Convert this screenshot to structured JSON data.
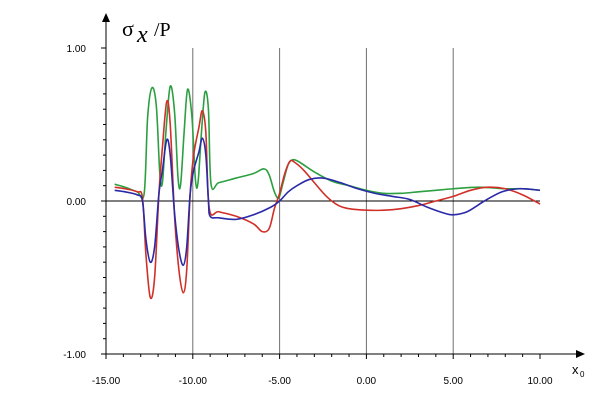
{
  "chart_data": {
    "type": "line",
    "ylabel": {
      "sigma": "σ",
      "sub": "x",
      "rest": "/P"
    },
    "xlabel": {
      "main": "x",
      "sub": "0"
    },
    "xlim": [
      -15,
      10
    ],
    "ylim": [
      -1,
      1
    ],
    "x_ticks": [
      -15,
      -10,
      -5,
      0,
      5,
      10
    ],
    "x_tick_labels": [
      "-15.00",
      "-10.00",
      "-5.00",
      "0.00",
      "5.00",
      "10.00"
    ],
    "y_ticks": [
      -1,
      0,
      1
    ],
    "y_tick_labels": [
      "-1.00",
      "0.00",
      "1.00"
    ],
    "vertical_gridlines_at": [
      -10,
      -5,
      0,
      5
    ],
    "series": [
      {
        "color": "#2ca040",
        "points": [
          [
            -14.5,
            0.11
          ],
          [
            -13.9,
            0.09
          ],
          [
            -13.2,
            0.06
          ],
          [
            -12.8,
            0.05
          ],
          [
            -12.6,
            0.55
          ],
          [
            -12.35,
            0.74
          ],
          [
            -12.1,
            0.62
          ],
          [
            -11.9,
            0.18
          ],
          [
            -11.75,
            0.12
          ],
          [
            -11.55,
            0.45
          ],
          [
            -11.3,
            0.75
          ],
          [
            -11.05,
            0.58
          ],
          [
            -10.85,
            0.15
          ],
          [
            -10.7,
            0.11
          ],
          [
            -10.5,
            0.45
          ],
          [
            -10.3,
            0.73
          ],
          [
            -10.05,
            0.55
          ],
          [
            -9.85,
            0.14
          ],
          [
            -9.7,
            0.12
          ],
          [
            -9.5,
            0.45
          ],
          [
            -9.3,
            0.71
          ],
          [
            -9.1,
            0.6
          ],
          [
            -8.95,
            0.11
          ],
          [
            -8.5,
            0.12
          ],
          [
            -7.5,
            0.15
          ],
          [
            -6.5,
            0.18
          ],
          [
            -5.9,
            0.21
          ],
          [
            -5.6,
            0.17
          ],
          [
            -5.3,
            0.06
          ],
          [
            -5.05,
            0.02
          ],
          [
            -4.8,
            0.12
          ],
          [
            -4.5,
            0.24
          ],
          [
            -4.2,
            0.27
          ],
          [
            -3.8,
            0.25
          ],
          [
            -3.0,
            0.19
          ],
          [
            -2.0,
            0.13
          ],
          [
            -1.0,
            0.1
          ],
          [
            0.0,
            0.07
          ],
          [
            1.0,
            0.05
          ],
          [
            2.0,
            0.05
          ],
          [
            3.0,
            0.06
          ],
          [
            4.0,
            0.07
          ],
          [
            5.0,
            0.08
          ],
          [
            6.5,
            0.09
          ],
          [
            8.0,
            0.08
          ],
          [
            9.0,
            0.08
          ],
          [
            10.0,
            0.07
          ]
        ]
      },
      {
        "color": "#d03028",
        "points": [
          [
            -14.5,
            0.09
          ],
          [
            -13.9,
            0.08
          ],
          [
            -13.2,
            0.06
          ],
          [
            -12.9,
            0.02
          ],
          [
            -12.7,
            -0.35
          ],
          [
            -12.45,
            -0.63
          ],
          [
            -12.2,
            -0.5
          ],
          [
            -11.95,
            0.05
          ],
          [
            -11.75,
            0.35
          ],
          [
            -11.5,
            0.65
          ],
          [
            -11.3,
            0.5
          ],
          [
            -11.05,
            -0.1
          ],
          [
            -10.8,
            -0.45
          ],
          [
            -10.55,
            -0.6
          ],
          [
            -10.35,
            -0.45
          ],
          [
            -10.15,
            0.05
          ],
          [
            -9.95,
            0.3
          ],
          [
            -9.65,
            0.48
          ],
          [
            -9.45,
            0.59
          ],
          [
            -9.25,
            0.45
          ],
          [
            -9.05,
            -0.05
          ],
          [
            -8.5,
            -0.07
          ],
          [
            -7.5,
            -0.1
          ],
          [
            -6.5,
            -0.15
          ],
          [
            -6.0,
            -0.2
          ],
          [
            -5.6,
            -0.18
          ],
          [
            -5.3,
            -0.05
          ],
          [
            -5.0,
            0.05
          ],
          [
            -4.7,
            0.18
          ],
          [
            -4.4,
            0.26
          ],
          [
            -4.1,
            0.25
          ],
          [
            -3.6,
            0.2
          ],
          [
            -3.0,
            0.12
          ],
          [
            -2.3,
            0.03
          ],
          [
            -1.6,
            -0.03
          ],
          [
            -1.0,
            -0.05
          ],
          [
            0.0,
            -0.06
          ],
          [
            1.0,
            -0.06
          ],
          [
            2.0,
            -0.05
          ],
          [
            3.0,
            -0.03
          ],
          [
            4.0,
            0.0
          ],
          [
            5.0,
            0.03
          ],
          [
            6.0,
            0.07
          ],
          [
            7.0,
            0.09
          ],
          [
            8.0,
            0.08
          ],
          [
            9.0,
            0.04
          ],
          [
            10.0,
            -0.02
          ]
        ]
      },
      {
        "color": "#2a2aa8",
        "points": [
          [
            -14.5,
            0.07
          ],
          [
            -13.9,
            0.06
          ],
          [
            -13.2,
            0.04
          ],
          [
            -12.9,
            0.0
          ],
          [
            -12.7,
            -0.25
          ],
          [
            -12.45,
            -0.4
          ],
          [
            -12.2,
            -0.3
          ],
          [
            -11.95,
            0.05
          ],
          [
            -11.75,
            0.2
          ],
          [
            -11.5,
            0.4
          ],
          [
            -11.3,
            0.3
          ],
          [
            -11.05,
            -0.08
          ],
          [
            -10.8,
            -0.32
          ],
          [
            -10.55,
            -0.42
          ],
          [
            -10.35,
            -0.3
          ],
          [
            -10.15,
            0.05
          ],
          [
            -9.95,
            0.2
          ],
          [
            -9.65,
            0.32
          ],
          [
            -9.45,
            0.41
          ],
          [
            -9.25,
            0.3
          ],
          [
            -9.1,
            0.0
          ],
          [
            -9.0,
            -0.1
          ],
          [
            -8.5,
            -0.11
          ],
          [
            -7.5,
            -0.12
          ],
          [
            -6.5,
            -0.09
          ],
          [
            -5.5,
            -0.04
          ],
          [
            -5.0,
            0.0
          ],
          [
            -4.5,
            0.06
          ],
          [
            -4.0,
            0.1
          ],
          [
            -3.3,
            0.14
          ],
          [
            -2.5,
            0.15
          ],
          [
            -1.5,
            0.12
          ],
          [
            -0.5,
            0.08
          ],
          [
            0.5,
            0.05
          ],
          [
            1.5,
            0.03
          ],
          [
            2.5,
            0.01
          ],
          [
            3.5,
            -0.04
          ],
          [
            4.5,
            -0.08
          ],
          [
            5.0,
            -0.09
          ],
          [
            5.8,
            -0.07
          ],
          [
            6.8,
            0.0
          ],
          [
            7.8,
            0.06
          ],
          [
            8.8,
            0.08
          ],
          [
            10.0,
            0.07
          ]
        ]
      }
    ]
  }
}
